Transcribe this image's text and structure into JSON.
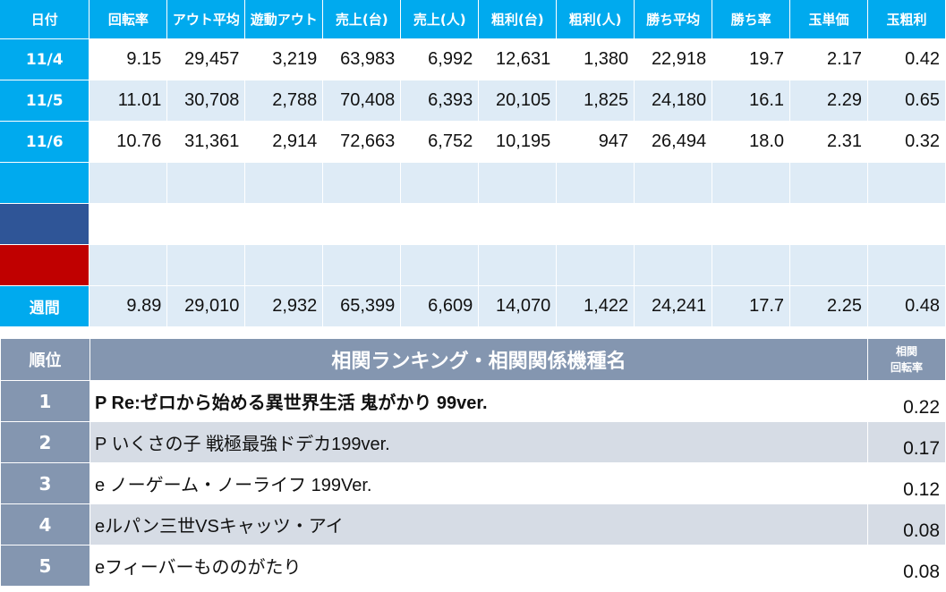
{
  "stats": {
    "headers": [
      "日付",
      "回転率",
      "アウト平均",
      "遊動アウト",
      "売上(台)",
      "売上(人)",
      "粗利(台)",
      "粗利(人)",
      "勝ち平均",
      "勝ち率",
      "玉単価",
      "玉粗利"
    ],
    "rows": [
      {
        "label": "11/4",
        "color": "#00aaee",
        "values": [
          "9.15",
          "29,457",
          "3,219",
          "63,983",
          "6,992",
          "12,631",
          "1,380",
          "22,918",
          "19.7",
          "2.17",
          "0.42"
        ]
      },
      {
        "label": "11/5",
        "color": "#00aaee",
        "values": [
          "11.01",
          "30,708",
          "2,788",
          "70,408",
          "6,393",
          "20,105",
          "1,825",
          "24,180",
          "16.1",
          "2.29",
          "0.65"
        ]
      },
      {
        "label": "11/6",
        "color": "#00aaee",
        "values": [
          "10.76",
          "31,361",
          "2,914",
          "72,663",
          "6,752",
          "10,195",
          "947",
          "26,494",
          "18.0",
          "2.31",
          "0.32"
        ]
      },
      {
        "label": "",
        "color": "#00aaee",
        "values": [
          "",
          "",
          "",
          "",
          "",
          "",
          "",
          "",
          "",
          "",
          ""
        ]
      },
      {
        "label": "",
        "color": "#2f5597",
        "values": [
          "",
          "",
          "",
          "",
          "",
          "",
          "",
          "",
          "",
          "",
          ""
        ]
      },
      {
        "label": "",
        "color": "#c00000",
        "values": [
          "",
          "",
          "",
          "",
          "",
          "",
          "",
          "",
          "",
          "",
          ""
        ]
      }
    ],
    "weekly": {
      "label": "週間",
      "color": "#00aaee",
      "values": [
        "9.89",
        "29,010",
        "2,932",
        "65,399",
        "6,609",
        "14,070",
        "1,422",
        "24,241",
        "17.7",
        "2.25",
        "0.48"
      ]
    }
  },
  "ranking": {
    "header_rank": "順位",
    "header_name": "相関ランキング・相関関係機種名",
    "header_corr_line1": "相関",
    "header_corr_line2": "回転率",
    "rows": [
      {
        "rank": "1",
        "name": "P Re:ゼロから始める異世界生活 鬼がかり 99ver.",
        "value": "0.22"
      },
      {
        "rank": "2",
        "name": "P いくさの子 戦極最強ドデカ199ver.",
        "value": "0.17"
      },
      {
        "rank": "3",
        "name": "e ノーゲーム・ノーライフ 199Ver.",
        "value": "0.12"
      },
      {
        "rank": "4",
        "name": "eルパン三世VSキャッツ・アイ",
        "value": "0.08"
      },
      {
        "rank": "5",
        "name": "eフィーバーもののがたり",
        "value": "0.08"
      }
    ]
  }
}
